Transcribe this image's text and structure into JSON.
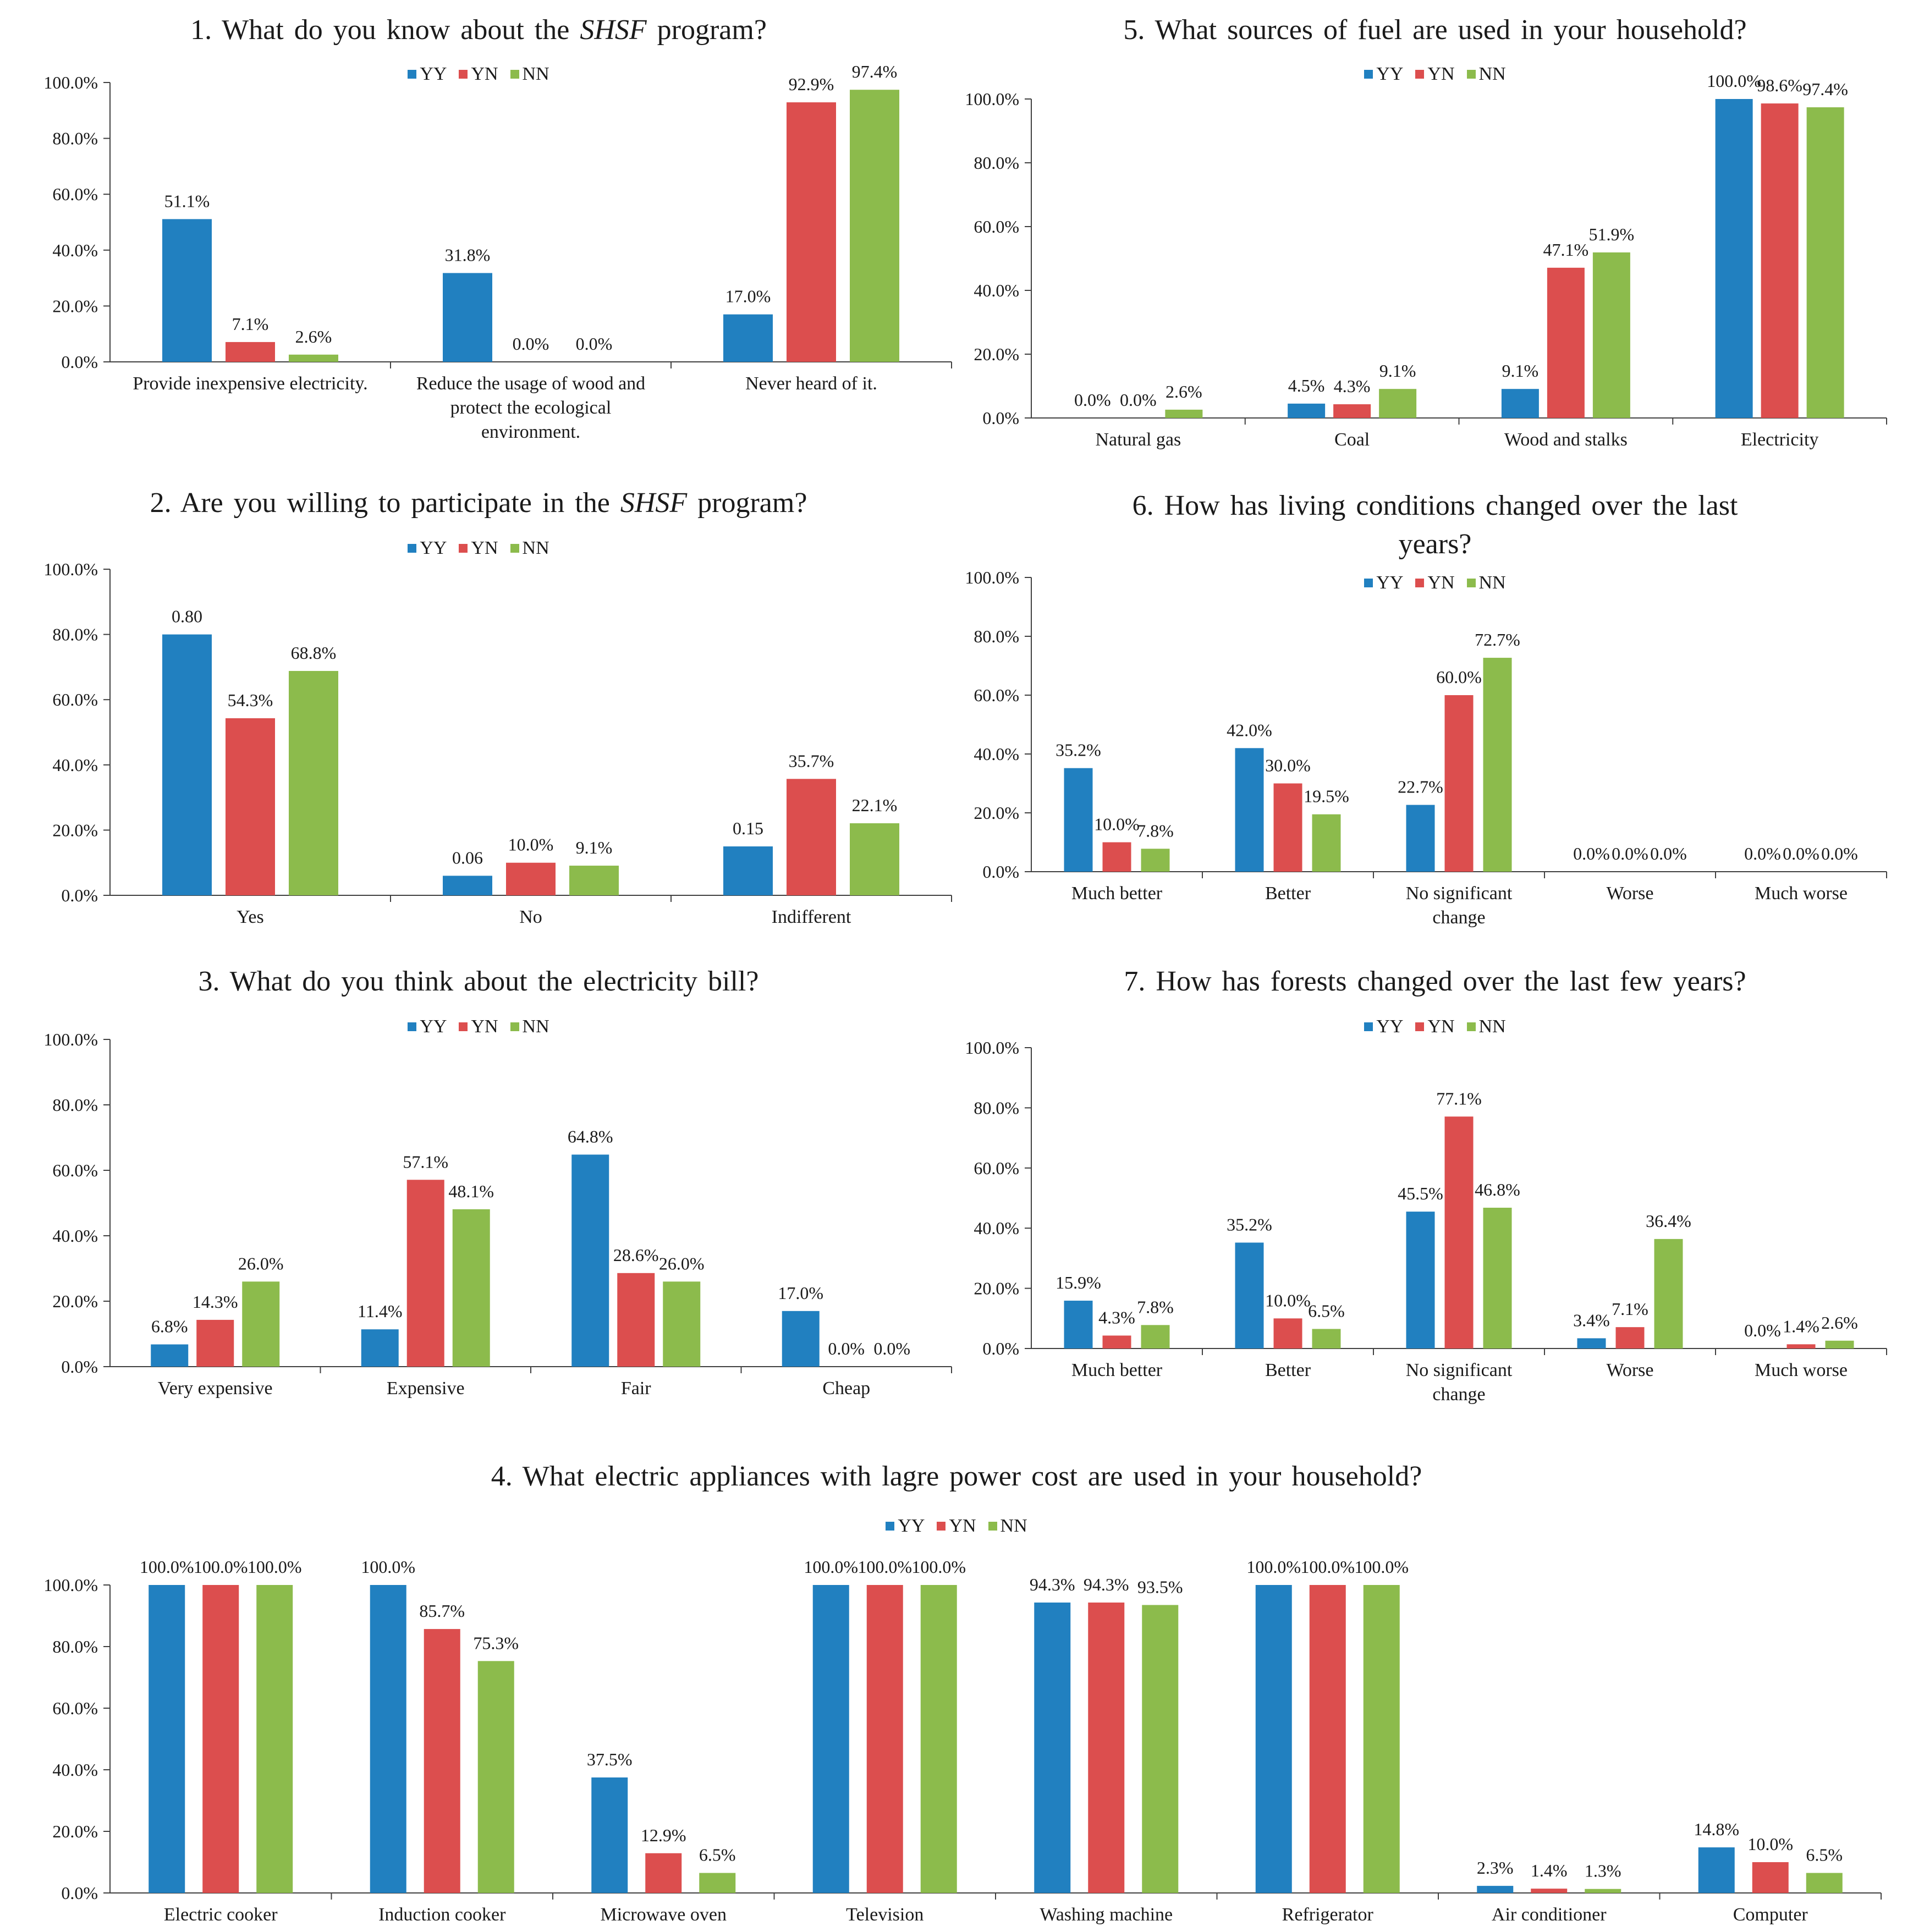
{
  "colors": {
    "YY": "#2180c0",
    "YN": "#dc4e4e",
    "NN": "#8cbb4c",
    "axis": "#404040"
  },
  "chart_data": [
    {
      "type": "bar",
      "title": [
        "1. What do you know about the ",
        "SHSF",
        " program?"
      ],
      "legend": [
        "YY",
        "YN",
        "NN"
      ],
      "categories": [
        [
          "Provide inexpensive electricity."
        ],
        [
          "Reduce the usage of wood and",
          "protect the ecological",
          "environment."
        ],
        [
          "Never heard of it."
        ]
      ],
      "yticks": [
        "0.0%",
        "20.0%",
        "40.0%",
        "60.0%",
        "80.0%",
        "100.0%"
      ],
      "ylim": [
        0,
        100
      ],
      "series": [
        {
          "name": "YY",
          "values": [
            51.1,
            31.8,
            17.0
          ],
          "labels": [
            "51.1%",
            "31.8%",
            "17.0%"
          ]
        },
        {
          "name": "YN",
          "values": [
            7.1,
            0.0,
            92.9
          ],
          "labels": [
            "7.1%",
            "0.0%",
            "92.9%"
          ]
        },
        {
          "name": "NN",
          "values": [
            2.6,
            0.0,
            97.4
          ],
          "labels": [
            "2.6%",
            "0.0%",
            "97.4%"
          ]
        }
      ]
    },
    {
      "type": "bar",
      "title": [
        "2. Are you willing to participate in the ",
        "SHSF",
        " program?"
      ],
      "legend": [
        "YY",
        "YN",
        "NN"
      ],
      "categories": [
        [
          "Yes"
        ],
        [
          "No"
        ],
        [
          "Indifferent"
        ]
      ],
      "yticks": [
        "0.0%",
        "20.0%",
        "40.0%",
        "60.0%",
        "80.0%",
        "100.0%"
      ],
      "ylim": [
        0,
        100
      ],
      "series": [
        {
          "name": "YY",
          "values": [
            80.0,
            6.0,
            15.0
          ],
          "labels": [
            "0.80",
            "0.06",
            "0.15"
          ]
        },
        {
          "name": "YN",
          "values": [
            54.3,
            10.0,
            35.7
          ],
          "labels": [
            "54.3%",
            "10.0%",
            "35.7%"
          ]
        },
        {
          "name": "NN",
          "values": [
            68.8,
            9.1,
            22.1
          ],
          "labels": [
            "68.8%",
            "9.1%",
            "22.1%"
          ]
        }
      ]
    },
    {
      "type": "bar",
      "title": [
        "3. What do you think about the electricity bill?"
      ],
      "legend": [
        "YY",
        "YN",
        "NN"
      ],
      "categories": [
        [
          "Very expensive"
        ],
        [
          "Expensive"
        ],
        [
          "Fair"
        ],
        [
          "Cheap"
        ]
      ],
      "yticks": [
        "0.0%",
        "20.0%",
        "40.0%",
        "60.0%",
        "80.0%",
        "100.0%"
      ],
      "ylim": [
        0,
        100
      ],
      "series": [
        {
          "name": "YY",
          "values": [
            6.8,
            11.4,
            64.8,
            17.0
          ],
          "labels": [
            "6.8%",
            "11.4%",
            "64.8%",
            "17.0%"
          ]
        },
        {
          "name": "YN",
          "values": [
            14.3,
            57.1,
            28.6,
            0.0
          ],
          "labels": [
            "14.3%",
            "57.1%",
            "28.6%",
            "0.0%"
          ]
        },
        {
          "name": "NN",
          "values": [
            26.0,
            48.1,
            26.0,
            0.0
          ],
          "labels": [
            "26.0%",
            "48.1%",
            "26.0%",
            "0.0%"
          ]
        }
      ]
    },
    {
      "type": "bar",
      "title": [
        "4. What electric appliances with lagre power cost are used in your household?"
      ],
      "legend": [
        "YY",
        "YN",
        "NN"
      ],
      "categories": [
        [
          "Electric cooker"
        ],
        [
          "Induction cooker"
        ],
        [
          "Microwave oven"
        ],
        [
          "Television"
        ],
        [
          "Washing machine"
        ],
        [
          "Refrigerator"
        ],
        [
          "Air conditioner"
        ],
        [
          "Computer"
        ]
      ],
      "yticks": [
        "0.0%",
        "20.0%",
        "40.0%",
        "60.0%",
        "80.0%",
        "100.0%"
      ],
      "ylim": [
        0,
        100
      ],
      "series": [
        {
          "name": "YY",
          "values": [
            100.0,
            100.0,
            37.5,
            100.0,
            94.3,
            100.0,
            2.3,
            14.8
          ],
          "labels": [
            "100.0%",
            "100.0%",
            "37.5%",
            "100.0%",
            "94.3%",
            "100.0%",
            "2.3%",
            "14.8%"
          ]
        },
        {
          "name": "YN",
          "values": [
            100.0,
            85.7,
            12.9,
            100.0,
            94.3,
            100.0,
            1.4,
            10.0
          ],
          "labels": [
            "100.0%",
            "85.7%",
            "12.9%",
            "100.0%",
            "94.3%",
            "100.0%",
            "1.4%",
            "10.0%"
          ]
        },
        {
          "name": "NN",
          "values": [
            100.0,
            75.3,
            6.5,
            100.0,
            93.5,
            100.0,
            1.3,
            6.5
          ],
          "labels": [
            "100.0%",
            "75.3%",
            "6.5%",
            "100.0%",
            "93.5%",
            "100.0%",
            "1.3%",
            "6.5%"
          ]
        }
      ]
    },
    {
      "type": "bar",
      "title": [
        "5. What sources of fuel are used in your household?"
      ],
      "legend": [
        "YY",
        "YN",
        "NN"
      ],
      "categories": [
        [
          "Natural gas"
        ],
        [
          "Coal"
        ],
        [
          "Wood and stalks"
        ],
        [
          "Electricity"
        ]
      ],
      "yticks": [
        "0.0%",
        "20.0%",
        "40.0%",
        "60.0%",
        "80.0%",
        "100.0%"
      ],
      "ylim": [
        0,
        100
      ],
      "series": [
        {
          "name": "YY",
          "values": [
            0.0,
            4.5,
            9.1,
            100.0
          ],
          "labels": [
            "0.0%",
            "4.5%",
            "9.1%",
            "100.0%"
          ]
        },
        {
          "name": "YN",
          "values": [
            0.0,
            4.3,
            47.1,
            98.6
          ],
          "labels": [
            "0.0%",
            "4.3%",
            "47.1%",
            "98.6%"
          ]
        },
        {
          "name": "NN",
          "values": [
            2.6,
            9.1,
            51.9,
            97.4
          ],
          "labels": [
            "2.6%",
            "9.1%",
            "51.9%",
            "97.4%"
          ]
        }
      ]
    },
    {
      "type": "bar",
      "title": [
        "6. How has living conditions changed over the last",
        "years?"
      ],
      "legend": [
        "YY",
        "YN",
        "NN"
      ],
      "categories": [
        [
          "Much better"
        ],
        [
          "Better"
        ],
        [
          "No significant",
          "change"
        ],
        [
          "Worse"
        ],
        [
          "Much worse"
        ]
      ],
      "yticks": [
        "0.0%",
        "20.0%",
        "40.0%",
        "60.0%",
        "80.0%",
        "100.0%"
      ],
      "ylim": [
        0,
        100
      ],
      "series": [
        {
          "name": "YY",
          "values": [
            35.2,
            42.0,
            22.7,
            0.0,
            0.0
          ],
          "labels": [
            "35.2%",
            "42.0%",
            "22.7%",
            "0.0%",
            "0.0%"
          ]
        },
        {
          "name": "YN",
          "values": [
            10.0,
            30.0,
            60.0,
            0.0,
            0.0
          ],
          "labels": [
            "10.0%",
            "30.0%",
            "60.0%",
            "0.0%",
            "0.0%"
          ]
        },
        {
          "name": "NN",
          "values": [
            7.8,
            19.5,
            72.7,
            0.0,
            0.0
          ],
          "labels": [
            "7.8%",
            "19.5%",
            "72.7%",
            "0.0%",
            "0.0%"
          ]
        }
      ]
    },
    {
      "type": "bar",
      "title": [
        "7. How has forests changed over the last few years?"
      ],
      "legend": [
        "YY",
        "YN",
        "NN"
      ],
      "categories": [
        [
          "Much better"
        ],
        [
          "Better"
        ],
        [
          "No significant",
          "change"
        ],
        [
          "Worse"
        ],
        [
          "Much worse"
        ]
      ],
      "yticks": [
        "0.0%",
        "20.0%",
        "40.0%",
        "60.0%",
        "80.0%",
        "100.0%"
      ],
      "ylim": [
        0,
        100
      ],
      "series": [
        {
          "name": "YY",
          "values": [
            15.9,
            35.2,
            45.5,
            3.4,
            0.0
          ],
          "labels": [
            "15.9%",
            "35.2%",
            "45.5%",
            "3.4%",
            "0.0%"
          ]
        },
        {
          "name": "YN",
          "values": [
            4.3,
            10.0,
            77.1,
            7.1,
            1.4
          ],
          "labels": [
            "4.3%",
            "10.0%",
            "77.1%",
            "7.1%",
            "1.4%"
          ]
        },
        {
          "name": "NN",
          "values": [
            7.8,
            6.5,
            46.8,
            36.4,
            2.6
          ],
          "labels": [
            "7.8%",
            "6.5%",
            "46.8%",
            "36.4%",
            "2.6%"
          ]
        }
      ]
    }
  ]
}
